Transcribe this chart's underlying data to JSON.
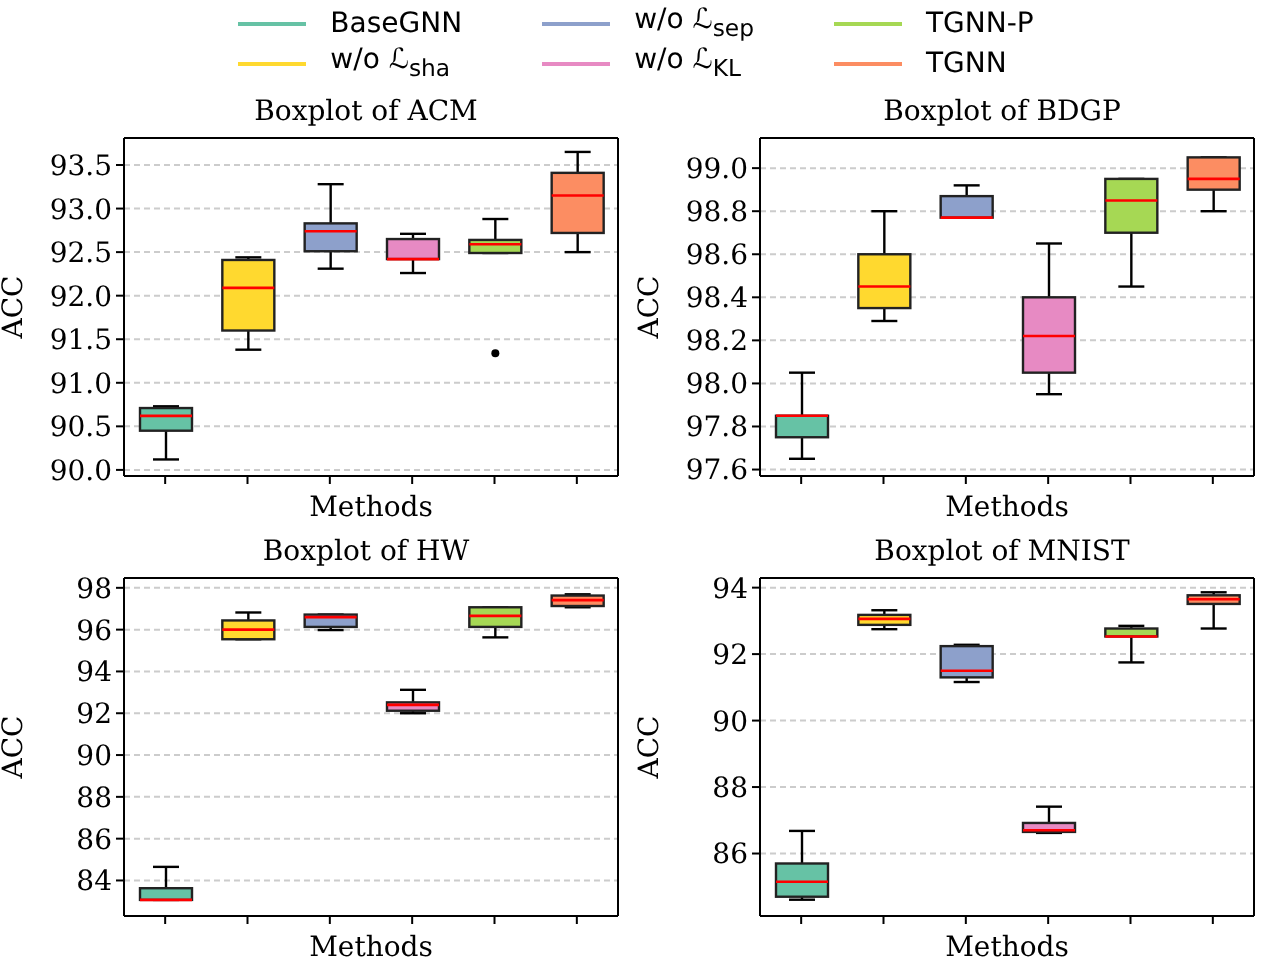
{
  "chart_data": [
    {
      "type": "box",
      "title": "Boxplot of ACM",
      "xlabel": "Methods",
      "ylabel": "ACC",
      "categories": [
        null,
        null,
        null,
        null,
        null,
        null
      ],
      "ylim": [
        89.93,
        93.81
      ],
      "yticks": [
        {
          "value": 90,
          "label": "90.0"
        },
        90.5,
        {
          "value": 91,
          "label": "91.0"
        },
        91.5,
        {
          "value": 92,
          "label": "92.0"
        },
        92.5,
        {
          "value": 93,
          "label": "93.0"
        },
        93.5
      ],
      "grid": "y",
      "legend": "top",
      "tick_labels": "y",
      "series": [
        {
          "name": "BaseGNN",
          "color": "#66c2a5",
          "boxes": [
            {
              "low": 90.12,
              "q1": 90.45,
              "median": 90.62,
              "q3": 90.71,
              "high": 90.73
            },
            null,
            null,
            null,
            null,
            null
          ]
        },
        {
          "name": "w/o ℒ$_{sha}$",
          "color": "#ffd92f",
          "boxes": [
            null,
            {
              "low": 91.38,
              "q1": 91.6,
              "median": 92.09,
              "q3": 92.41,
              "high": 92.44
            },
            null,
            null,
            null,
            null
          ]
        },
        {
          "name": "w/o ℒ$_{sep}$",
          "color": "#8da0cb",
          "boxes": [
            null,
            null,
            {
              "low": 92.31,
              "q1": 92.51,
              "median": 92.74,
              "q3": 92.83,
              "high": 93.28
            },
            null,
            null,
            null
          ]
        },
        {
          "name": "w/o ℒ$_{KL}$",
          "color": "#e78ac3",
          "boxes": [
            null,
            null,
            null,
            {
              "low": 92.26,
              "q1": 92.42,
              "median": 92.42,
              "q3": 92.65,
              "high": 92.71
            },
            null,
            null
          ]
        },
        {
          "name": "TGNN-P",
          "color": "#a6d854",
          "boxes": [
            null,
            null,
            null,
            null,
            {
              "low": 92.49,
              "q1": 92.49,
              "median": 92.59,
              "q3": 92.64,
              "high": 92.88,
              "outliers": [
                91.34
              ]
            },
            null
          ]
        },
        {
          "name": "TGNN",
          "color": "#fc8d62",
          "boxes": [
            null,
            null,
            null,
            null,
            null,
            {
              "low": 92.5,
              "q1": 92.72,
              "median": 93.15,
              "q3": 93.41,
              "high": 93.65
            }
          ]
        }
      ]
    },
    {
      "type": "box",
      "title": "Boxplot of BDGP",
      "xlabel": "Methods",
      "ylabel": "ACC",
      "categories": [
        null,
        null,
        null,
        null,
        null,
        null
      ],
      "ylim": [
        97.57,
        99.14
      ],
      "yticks": [
        97.6,
        97.8,
        {
          "value": 98,
          "label": "98.0"
        },
        98.2,
        98.4,
        98.6,
        98.8,
        {
          "value": 99,
          "label": "99.0"
        }
      ],
      "grid": "y",
      "tick_labels": "y",
      "series": [
        {
          "color": "#66c2a5",
          "boxes": [
            {
              "low": 97.65,
              "q1": 97.75,
              "median": 97.85,
              "q3": 97.85,
              "high": 98.05
            },
            null,
            null,
            null,
            null,
            null
          ]
        },
        {
          "color": "#ffd92f",
          "boxes": [
            null,
            {
              "low": 98.29,
              "q1": 98.35,
              "median": 98.45,
              "q3": 98.6,
              "high": 98.8
            },
            null,
            null,
            null,
            null
          ]
        },
        {
          "color": "#8da0cb",
          "boxes": [
            null,
            null,
            {
              "low": 98.77,
              "q1": 98.77,
              "median": 98.77,
              "q3": 98.87,
              "high": 98.92
            },
            null,
            null,
            null
          ]
        },
        {
          "color": "#e78ac3",
          "boxes": [
            null,
            null,
            null,
            {
              "low": 97.95,
              "q1": 98.05,
              "median": 98.22,
              "q3": 98.4,
              "high": 98.65
            },
            null,
            null
          ]
        },
        {
          "color": "#a6d854",
          "boxes": [
            null,
            null,
            null,
            null,
            {
              "low": 98.45,
              "q1": 98.7,
              "median": 98.85,
              "q3": 98.95,
              "high": 98.95
            },
            null
          ]
        },
        {
          "color": "#fc8d62",
          "boxes": [
            null,
            null,
            null,
            null,
            null,
            {
              "low": 98.8,
              "q1": 98.9,
              "median": 98.95,
              "q3": 99.05,
              "high": 99.05
            }
          ]
        }
      ]
    },
    {
      "type": "box",
      "title": "Boxplot of HW",
      "xlabel": "Methods",
      "ylabel": "ACC",
      "categories": [
        null,
        null,
        null,
        null,
        null,
        null
      ],
      "ylim": [
        82.3,
        98.47
      ],
      "yticks": [
        84,
        86,
        88,
        90,
        92,
        94,
        96,
        98
      ],
      "grid": "y",
      "tick_labels": "y",
      "series": [
        {
          "color": "#66c2a5",
          "boxes": [
            {
              "low": 83.07,
              "q1": 83.07,
              "median": 83.07,
              "q3": 83.63,
              "high": 84.65
            },
            null,
            null,
            null,
            null,
            null
          ]
        },
        {
          "color": "#ffd92f",
          "boxes": [
            null,
            {
              "low": 95.54,
              "q1": 95.54,
              "median": 96.0,
              "q3": 96.44,
              "high": 96.82
            },
            null,
            null,
            null,
            null
          ]
        },
        {
          "color": "#8da0cb",
          "boxes": [
            null,
            null,
            {
              "low": 95.98,
              "q1": 96.13,
              "median": 96.6,
              "q3": 96.72,
              "high": 96.72
            },
            null,
            null,
            null
          ]
        },
        {
          "color": "#e78ac3",
          "boxes": [
            null,
            null,
            null,
            {
              "low": 92.0,
              "q1": 92.12,
              "median": 92.4,
              "q3": 92.52,
              "high": 93.12
            },
            null,
            null
          ]
        },
        {
          "color": "#a6d854",
          "boxes": [
            null,
            null,
            null,
            null,
            {
              "low": 95.63,
              "q1": 96.13,
              "median": 96.66,
              "q3": 97.07,
              "high": 97.07
            },
            null
          ]
        },
        {
          "color": "#fc8d62",
          "boxes": [
            null,
            null,
            null,
            null,
            null,
            {
              "low": 97.07,
              "q1": 97.13,
              "median": 97.41,
              "q3": 97.63,
              "high": 97.69
            }
          ]
        }
      ]
    },
    {
      "type": "box",
      "title": "Boxplot of MNIST",
      "xlabel": "Methods",
      "ylabel": "ACC",
      "categories": [
        null,
        null,
        null,
        null,
        null,
        null
      ],
      "ylim": [
        84.12,
        94.29
      ],
      "yticks": [
        86,
        88,
        90,
        92,
        94
      ],
      "grid": "y",
      "tick_labels": "y",
      "series": [
        {
          "color": "#66c2a5",
          "boxes": [
            {
              "low": 84.61,
              "q1": 84.7,
              "median": 85.15,
              "q3": 85.7,
              "high": 86.68
            },
            null,
            null,
            null,
            null,
            null
          ]
        },
        {
          "color": "#ffd92f",
          "boxes": [
            null,
            {
              "low": 92.75,
              "q1": 92.88,
              "median": 93.06,
              "q3": 93.18,
              "high": 93.32
            },
            null,
            null,
            null,
            null
          ]
        },
        {
          "color": "#8da0cb",
          "boxes": [
            null,
            null,
            {
              "low": 91.16,
              "q1": 91.3,
              "median": 91.5,
              "q3": 92.24,
              "high": 92.28
            },
            null,
            null,
            null
          ]
        },
        {
          "color": "#e78ac3",
          "boxes": [
            null,
            null,
            null,
            {
              "low": 86.62,
              "q1": 86.65,
              "median": 86.7,
              "q3": 86.92,
              "high": 87.41
            },
            null,
            null
          ]
        },
        {
          "color": "#a6d854",
          "boxes": [
            null,
            null,
            null,
            null,
            {
              "low": 91.75,
              "q1": 92.53,
              "median": 92.53,
              "q3": 92.77,
              "high": 92.85
            },
            null
          ]
        },
        {
          "color": "#fc8d62",
          "boxes": [
            null,
            null,
            null,
            null,
            null,
            {
              "low": 92.77,
              "q1": 93.51,
              "median": 93.65,
              "q3": 93.77,
              "high": 93.86
            }
          ]
        }
      ]
    }
  ]
}
